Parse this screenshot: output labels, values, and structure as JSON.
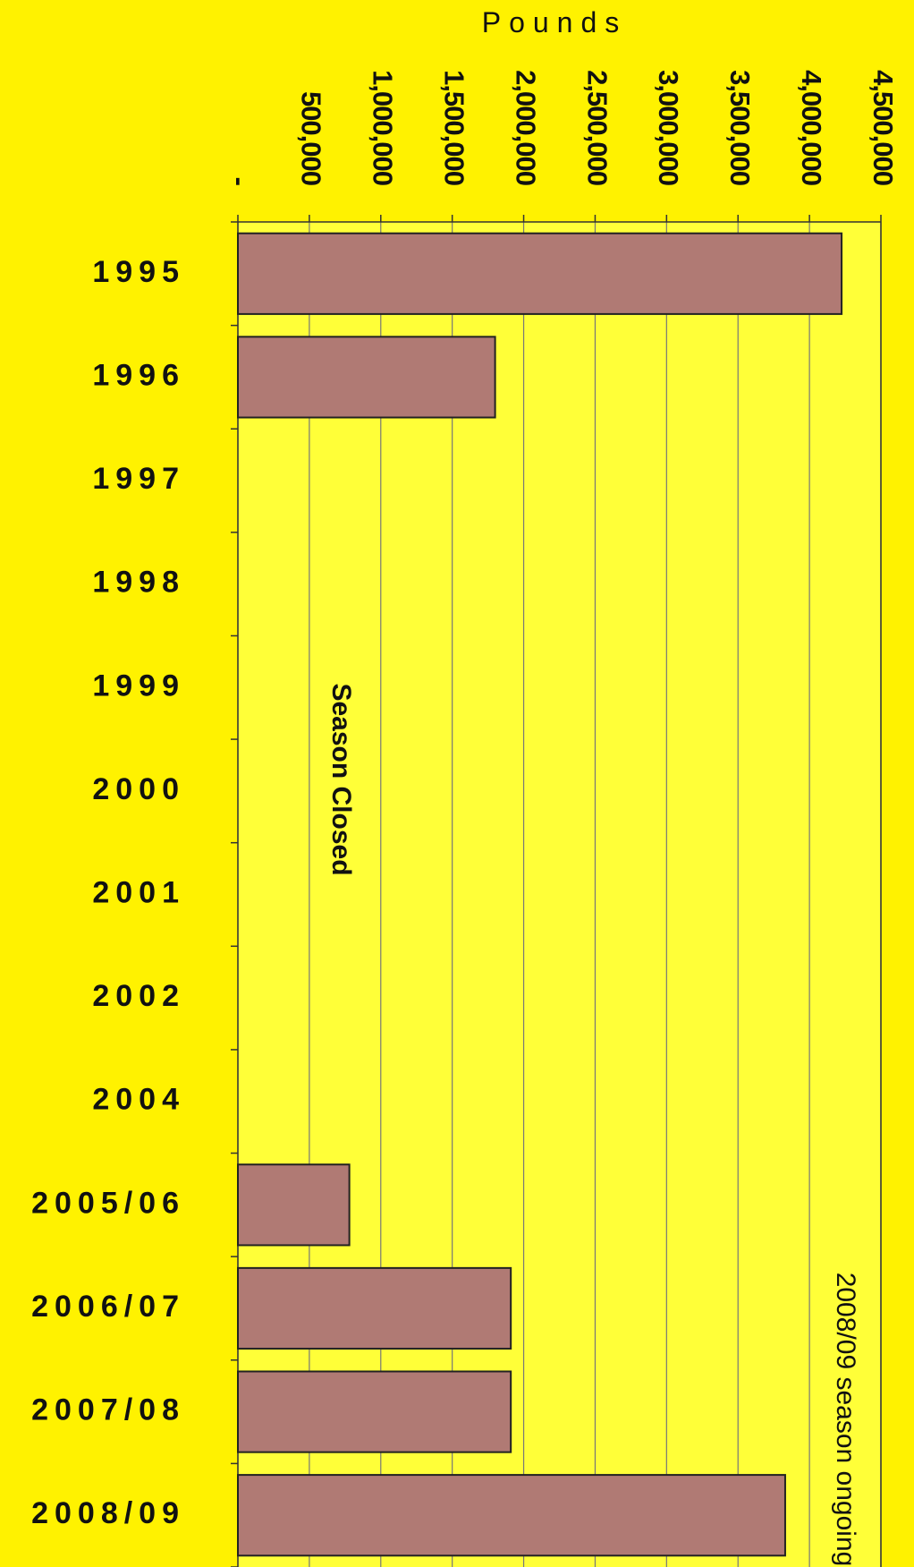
{
  "chart_data": {
    "type": "bar",
    "orientation": "horizontal",
    "x_label": "Pounds",
    "categories": [
      "1995",
      "1996",
      "1997",
      "1998",
      "1999",
      "2000",
      "2001",
      "2002",
      "2004",
      "2005/06",
      "2006/07",
      "2007/08",
      "2008/09"
    ],
    "values": [
      4225000,
      1800000,
      null,
      null,
      null,
      null,
      null,
      null,
      null,
      780000,
      1910000,
      1910000,
      3830000
    ],
    "color": "#b07a74",
    "xlim": [
      0,
      4500000
    ],
    "xticks": [
      {
        "value": 0,
        "label": "-"
      },
      {
        "value": 500000,
        "label": "500,000"
      },
      {
        "value": 1000000,
        "label": "1,000,000"
      },
      {
        "value": 1500000,
        "label": "1,500,000"
      },
      {
        "value": 2000000,
        "label": "2,000,000"
      },
      {
        "value": 2500000,
        "label": "2,500,000"
      },
      {
        "value": 3000000,
        "label": "3,000,000"
      },
      {
        "value": 3500000,
        "label": "3,500,000"
      },
      {
        "value": 4000000,
        "label": "4,000,000"
      },
      {
        "value": 4500000,
        "label": "4,500,000"
      }
    ],
    "grid": true,
    "annotations": [
      "Season Closed",
      "2008/09 season ongoing"
    ]
  }
}
